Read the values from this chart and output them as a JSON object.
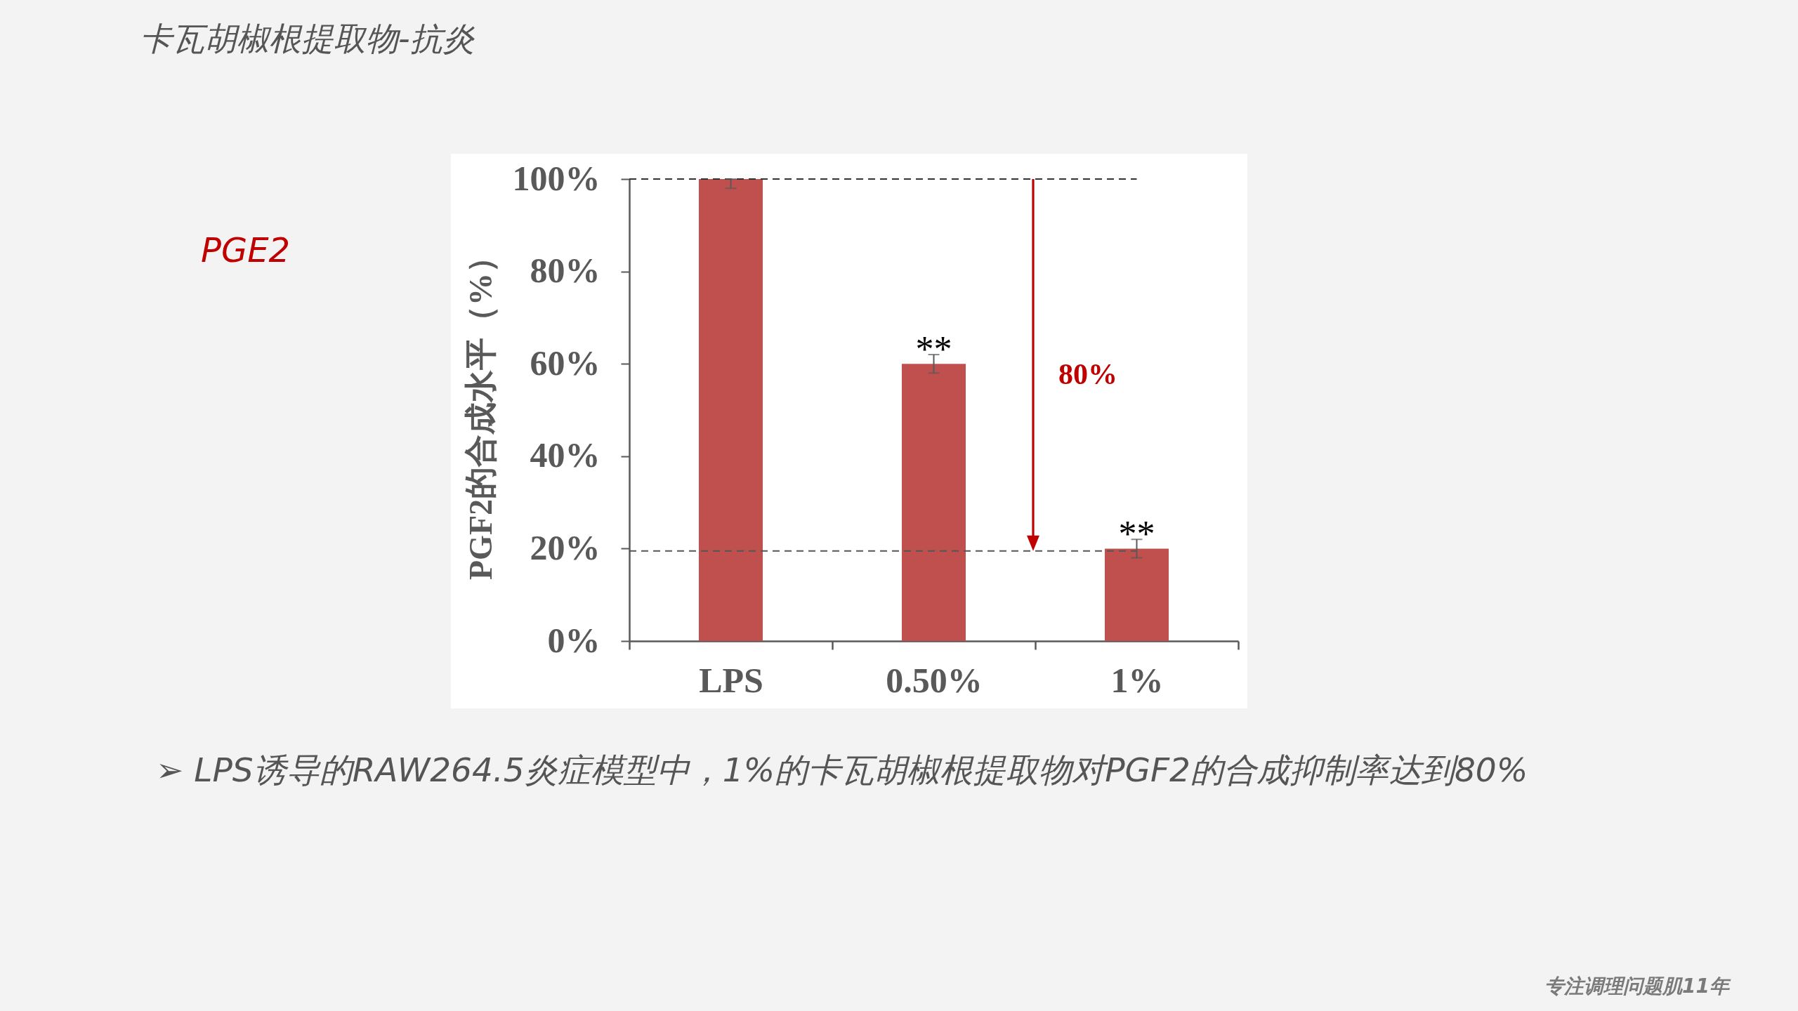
{
  "chart_data": {
    "type": "bar",
    "title": "卡瓦胡椒根提取物-抗炎",
    "subtitle": "PGE2",
    "ylabel": "PGF2的合成水平（%）",
    "categories": [
      "LPS",
      "0.50%",
      "1%"
    ],
    "values": [
      100,
      60,
      20
    ],
    "errors": [
      [
        98,
        100
      ],
      2,
      2
    ],
    "color": "#c0504d",
    "ylim": [
      0,
      100
    ],
    "yticks": [
      {
        "value": 0,
        "label": "0%"
      },
      {
        "value": 20,
        "label": "20%"
      },
      {
        "value": 40,
        "label": "40%"
      },
      {
        "value": 60,
        "label": "60%"
      },
      {
        "value": 80,
        "label": "80%"
      },
      {
        "value": 100,
        "label": "100%"
      }
    ],
    "ref_lines": [
      {
        "axis": "y",
        "value": 100,
        "color": "#333333",
        "line_style": "dashed"
      },
      {
        "axis": "y",
        "value": 19.5,
        "color": "#555555",
        "line_style": "dashed"
      }
    ],
    "annotations": [
      "**",
      "**",
      "80%",
      "➢ LPS诱导的RAW264.5炎症模型中，1%的卡瓦胡椒根提取物对PGF2的合成抑制率达到80%",
      "专注调理问题肌11年"
    ]
  }
}
